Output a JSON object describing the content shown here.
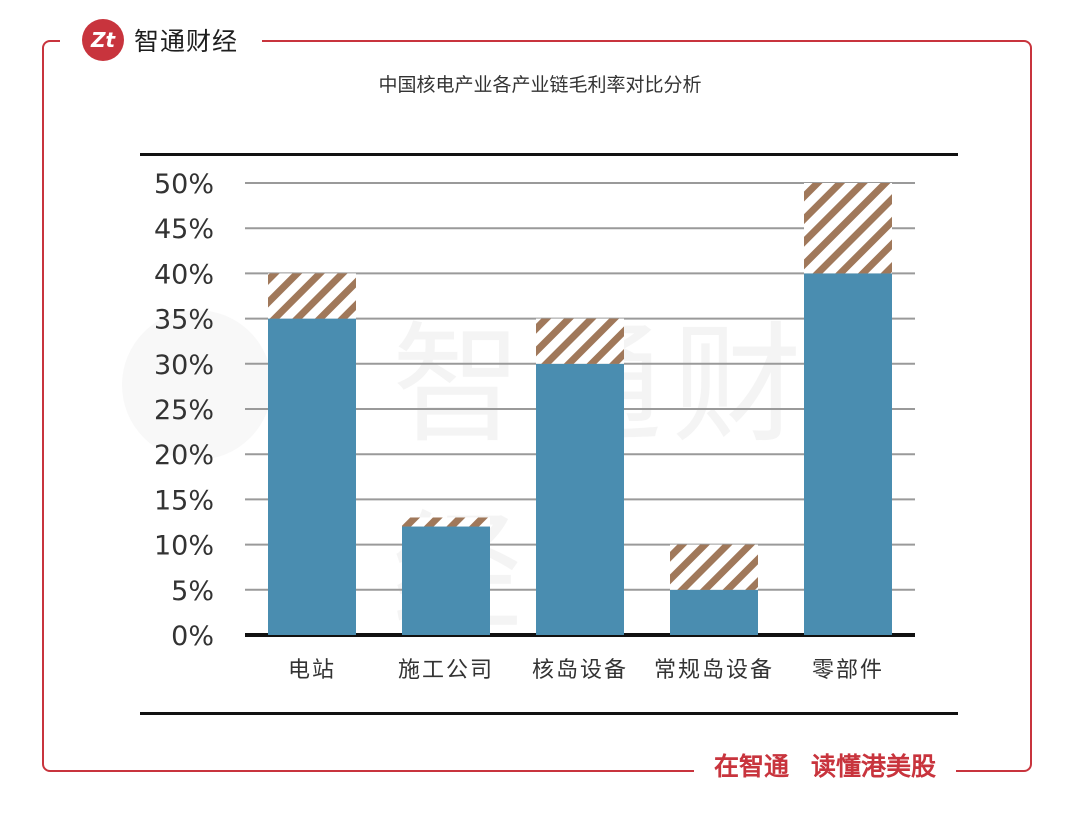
{
  "brand": {
    "logo_text": "Zt",
    "name": "智通财经"
  },
  "slogan": {
    "part1": "在智通",
    "part2": "读懂港美股"
  },
  "chart_data": {
    "type": "bar",
    "title": "中国核电产业各产业链毛利率对比分析",
    "categories": [
      "电站",
      "施工公司",
      "核岛设备",
      "常规岛设备",
      "零部件"
    ],
    "series": [
      {
        "values": [
          35,
          12,
          30,
          5,
          40
        ],
        "color": "#4a8db0"
      },
      {
        "values": [
          5,
          1,
          5,
          5,
          10
        ],
        "color": "#a0785a",
        "pattern": "diagonal-hatch"
      }
    ],
    "stacked": true,
    "ylim": [
      0,
      50
    ],
    "yticks": [
      "0%",
      "5%",
      "10%",
      "15%",
      "20%",
      "25%",
      "30%",
      "35%",
      "40%",
      "45%",
      "50%"
    ],
    "grid": true,
    "legend": false
  }
}
